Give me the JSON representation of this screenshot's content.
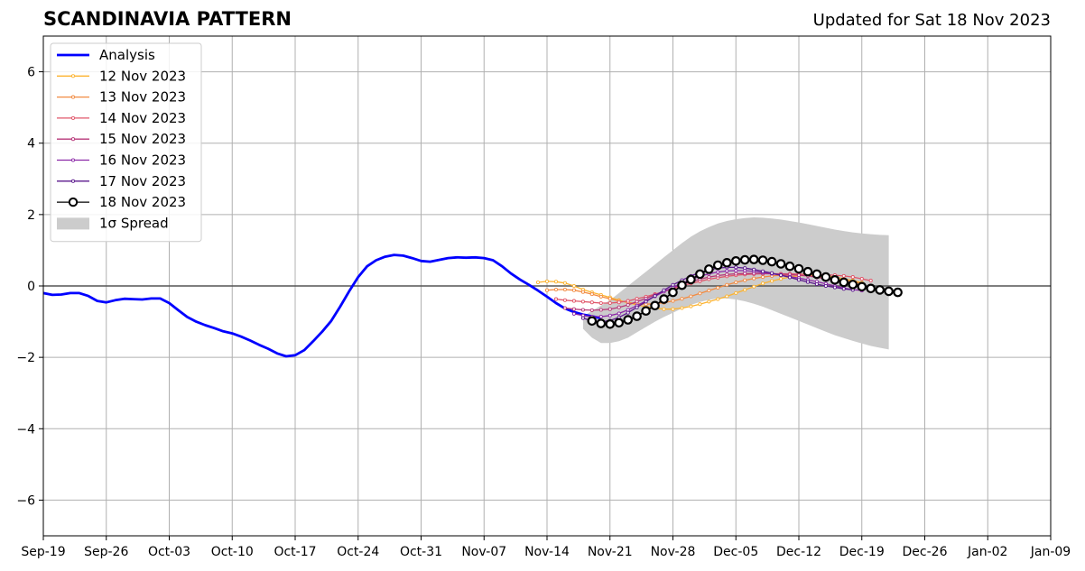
{
  "header": {
    "title": "SCANDINAVIA PATTERN",
    "updated": "Updated for Sat 18 Nov 2023"
  },
  "chart_data": {
    "type": "line",
    "title": "SCANDINAVIA PATTERN",
    "subtitle": "Updated for Sat 18 Nov 2023",
    "xlabel": "",
    "ylabel": "",
    "xlim": [
      "2023-09-19",
      "2024-01-09"
    ],
    "ylim": [
      -7,
      7
    ],
    "grid": true,
    "legend_position": "top-left",
    "x_tick_labels": [
      "Sep-19",
      "Sep-26",
      "Oct-03",
      "Oct-10",
      "Oct-17",
      "Oct-24",
      "Oct-31",
      "Nov-07",
      "Nov-14",
      "Nov-21",
      "Nov-28",
      "Dec-05",
      "Dec-12",
      "Dec-19",
      "Dec-26",
      "Jan-02",
      "Jan-09"
    ],
    "y_ticks": [
      6,
      4,
      2,
      0,
      -2,
      -4,
      -6
    ],
    "y_tick_labels": [
      "6",
      "4",
      "2",
      "0",
      "−2",
      "−4",
      "−6"
    ],
    "analysis": {
      "name": "Analysis",
      "color": "#0000ff",
      "start_date": "2023-09-19",
      "values": [
        -0.2,
        -0.25,
        -0.24,
        -0.2,
        -0.2,
        -0.28,
        -0.42,
        -0.46,
        -0.4,
        -0.36,
        -0.37,
        -0.38,
        -0.35,
        -0.35,
        -0.48,
        -0.68,
        -0.87,
        -1.0,
        -1.1,
        -1.18,
        -1.27,
        -1.33,
        -1.42,
        -1.53,
        -1.65,
        -1.76,
        -1.89,
        -1.97,
        -1.94,
        -1.8,
        -1.55,
        -1.28,
        -0.98,
        -0.58,
        -0.15,
        0.25,
        0.55,
        0.72,
        0.82,
        0.87,
        0.85,
        0.78,
        0.7,
        0.68,
        0.73,
        0.78,
        0.8,
        0.79,
        0.8,
        0.78,
        0.72,
        0.55,
        0.35,
        0.18,
        0.03,
        -0.13,
        -0.3,
        -0.48,
        -0.63,
        -0.73,
        -0.8,
        -0.85,
        -0.9
      ]
    },
    "spread": {
      "name": "1σ Spread",
      "color": "#cccccc",
      "start_date": "2023-11-18",
      "upper": [
        -0.85,
        -0.7,
        -0.55,
        -0.4,
        -0.2,
        0.0,
        0.2,
        0.4,
        0.6,
        0.8,
        1.0,
        1.2,
        1.38,
        1.53,
        1.65,
        1.75,
        1.82,
        1.87,
        1.9,
        1.92,
        1.91,
        1.89,
        1.86,
        1.82,
        1.78,
        1.73,
        1.68,
        1.63,
        1.58,
        1.54,
        1.5,
        1.47,
        1.45,
        1.43,
        1.42
      ],
      "lower": [
        -1.2,
        -1.45,
        -1.6,
        -1.6,
        -1.55,
        -1.45,
        -1.3,
        -1.15,
        -1.0,
        -0.87,
        -0.75,
        -0.63,
        -0.53,
        -0.45,
        -0.39,
        -0.35,
        -0.35,
        -0.38,
        -0.43,
        -0.5,
        -0.58,
        -0.68,
        -0.78,
        -0.88,
        -0.98,
        -1.08,
        -1.18,
        -1.28,
        -1.38,
        -1.46,
        -1.54,
        -1.61,
        -1.68,
        -1.73,
        -1.78
      ]
    },
    "forecasts": [
      {
        "name": "12 Nov 2023",
        "color": "#fcb330",
        "start_date": "2023-11-13",
        "values": [
          0.1,
          0.13,
          0.12,
          0.08,
          0.0,
          -0.1,
          -0.18,
          -0.25,
          -0.32,
          -0.4,
          -0.47,
          -0.53,
          -0.58,
          -0.62,
          -0.65,
          -0.65,
          -0.62,
          -0.57,
          -0.51,
          -0.44,
          -0.37,
          -0.29,
          -0.2,
          -0.11,
          -0.02,
          0.07,
          0.14,
          0.2,
          0.25,
          0.28,
          0.3,
          0.3,
          0.28,
          0.25,
          0.2,
          0.15,
          0.09
        ]
      },
      {
        "name": "13 Nov 2023",
        "color": "#f28b42",
        "start_date": "2023-11-14",
        "values": [
          -0.12,
          -0.1,
          -0.1,
          -0.12,
          -0.17,
          -0.23,
          -0.3,
          -0.36,
          -0.42,
          -0.46,
          -0.5,
          -0.51,
          -0.5,
          -0.47,
          -0.42,
          -0.36,
          -0.29,
          -0.21,
          -0.13,
          -0.05,
          0.03,
          0.1,
          0.16,
          0.21,
          0.25,
          0.28,
          0.3,
          0.3,
          0.3,
          0.29,
          0.27,
          0.24,
          0.2,
          0.16,
          0.11,
          0.07
        ]
      },
      {
        "name": "14 Nov 2023",
        "color": "#e0566a",
        "start_date": "2023-11-15",
        "values": [
          -0.37,
          -0.4,
          -0.42,
          -0.44,
          -0.46,
          -0.48,
          -0.48,
          -0.46,
          -0.42,
          -0.36,
          -0.3,
          -0.23,
          -0.16,
          -0.08,
          0.0,
          0.07,
          0.13,
          0.19,
          0.23,
          0.27,
          0.3,
          0.32,
          0.33,
          0.34,
          0.34,
          0.34,
          0.34,
          0.33,
          0.33,
          0.32,
          0.31,
          0.3,
          0.28,
          0.25,
          0.2,
          0.15
        ]
      },
      {
        "name": "15 Nov 2023",
        "color": "#b73779",
        "start_date": "2023-11-16",
        "values": [
          -0.62,
          -0.65,
          -0.67,
          -0.68,
          -0.67,
          -0.65,
          -0.6,
          -0.53,
          -0.44,
          -0.35,
          -0.25,
          -0.15,
          -0.05,
          0.04,
          0.12,
          0.19,
          0.25,
          0.29,
          0.32,
          0.34,
          0.35,
          0.35,
          0.35,
          0.34,
          0.33,
          0.32,
          0.3,
          0.28,
          0.24,
          0.2,
          0.15,
          0.1,
          0.05,
          0.0
        ]
      },
      {
        "name": "16 Nov 2023",
        "color": "#8c29a8",
        "start_date": "2023-11-17",
        "values": [
          -0.78,
          -0.83,
          -0.86,
          -0.86,
          -0.83,
          -0.77,
          -0.67,
          -0.55,
          -0.42,
          -0.29,
          -0.16,
          -0.04,
          0.08,
          0.18,
          0.27,
          0.34,
          0.39,
          0.42,
          0.43,
          0.43,
          0.41,
          0.38,
          0.34,
          0.3,
          0.26,
          0.22,
          0.17,
          0.12,
          0.06,
          0.0,
          -0.06,
          -0.1,
          -0.13
        ]
      },
      {
        "name": "17 Nov 2023",
        "color": "#5c1a8e",
        "start_date": "2023-11-18",
        "values": [
          -0.9,
          -0.98,
          -1.0,
          -0.97,
          -0.88,
          -0.75,
          -0.6,
          -0.44,
          -0.28,
          -0.12,
          0.03,
          0.16,
          0.28,
          0.38,
          0.45,
          0.5,
          0.52,
          0.52,
          0.5,
          0.46,
          0.41,
          0.36,
          0.3,
          0.24,
          0.17,
          0.11,
          0.05,
          0.0,
          -0.04,
          -0.08,
          -0.11
        ]
      },
      {
        "name": "18 Nov 2023",
        "color": "#000000",
        "start_date": "2023-11-19",
        "values": [
          -0.98,
          -1.05,
          -1.07,
          -1.03,
          -0.95,
          -0.85,
          -0.7,
          -0.55,
          -0.37,
          -0.18,
          0.02,
          0.18,
          0.33,
          0.47,
          0.58,
          0.65,
          0.7,
          0.73,
          0.74,
          0.72,
          0.68,
          0.62,
          0.55,
          0.48,
          0.4,
          0.33,
          0.25,
          0.17,
          0.1,
          0.04,
          -0.02,
          -0.07,
          -0.11,
          -0.15,
          -0.18
        ]
      }
    ]
  }
}
